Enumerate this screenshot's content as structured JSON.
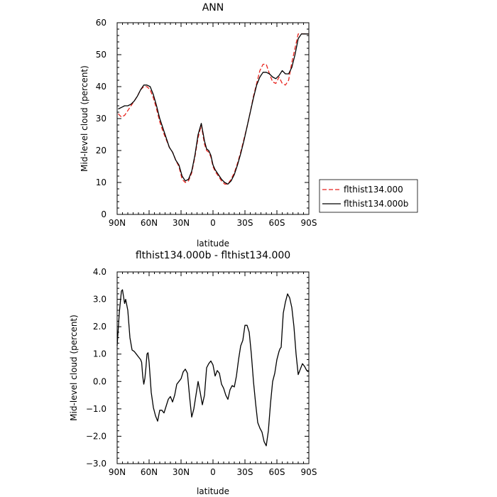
{
  "chart_data": [
    {
      "type": "line",
      "title": "ANN",
      "xlabel": "latitude",
      "ylabel": "Mid-level cloud (percent)",
      "xlim": [
        90,
        -90
      ],
      "ylim": [
        0,
        60
      ],
      "x_ticks": [
        90,
        60,
        30,
        0,
        -30,
        -60,
        -90
      ],
      "x_tick_labels": [
        "90N",
        "60N",
        "30N",
        "0",
        "30S",
        "60S",
        "90S"
      ],
      "y_ticks": [
        0,
        10,
        20,
        30,
        40,
        50,
        60
      ],
      "y_tick_labels": [
        "0",
        "10",
        "20",
        "30",
        "40",
        "50",
        "60"
      ],
      "grid": false,
      "legend_position": "right",
      "series": [
        {
          "name": "flthist134.000",
          "color": "#e8231d",
          "dash": "dashed",
          "x": [
            89,
            86,
            83,
            80,
            77,
            74,
            71,
            68,
            65,
            62,
            59,
            56,
            53,
            50,
            47,
            44,
            41,
            38,
            35,
            32,
            29,
            26,
            23,
            20,
            17,
            14,
            11,
            8,
            6,
            4,
            2,
            0,
            -2,
            -4,
            -6,
            -8,
            -11,
            -14,
            -17,
            -20,
            -23,
            -26,
            -29,
            -32,
            -35,
            -38,
            -41,
            -44,
            -47,
            -50,
            -53,
            -56,
            -59,
            -62,
            -65,
            -68,
            -71,
            -74,
            -77,
            -80,
            -83,
            -86,
            -88,
            -89.5
          ],
          "y": [
            31.5,
            30.5,
            31,
            32.5,
            34,
            35.5,
            37,
            39,
            40,
            40,
            39,
            36.5,
            33,
            29,
            26,
            23.5,
            21,
            19.5,
            17,
            15,
            11,
            10,
            10.5,
            13,
            18,
            24,
            28,
            22,
            20,
            19.5,
            18,
            15,
            13.5,
            12.5,
            11.5,
            10.5,
            9.5,
            9.5,
            11,
            13,
            16,
            19.5,
            23.5,
            27.5,
            32,
            37,
            41,
            45,
            47,
            47,
            44,
            41.5,
            41,
            43,
            41,
            40.5,
            42,
            47.5,
            52,
            56.5,
            56.5,
            56.5,
            56.5,
            56.5
          ]
        },
        {
          "name": "flthist134.000b",
          "color": "#000000",
          "dash": "solid",
          "x": [
            89,
            86,
            83,
            80,
            77,
            74,
            71,
            68,
            65,
            62,
            59,
            56,
            53,
            50,
            47,
            44,
            41,
            38,
            35,
            32,
            29,
            26,
            23,
            20,
            17,
            14,
            11,
            8,
            6,
            4,
            2,
            0,
            -2,
            -4,
            -6,
            -8,
            -11,
            -14,
            -17,
            -20,
            -23,
            -26,
            -29,
            -32,
            -35,
            -38,
            -41,
            -44,
            -47,
            -50,
            -53,
            -56,
            -59,
            -62,
            -65,
            -68,
            -71,
            -74,
            -77,
            -80,
            -83,
            -86,
            -88,
            -89.5
          ],
          "y": [
            33,
            33.5,
            34,
            34,
            34.5,
            35.5,
            37,
            39,
            40.5,
            40.5,
            40,
            37.5,
            34,
            30,
            27,
            24,
            21,
            19.5,
            17,
            15.5,
            12,
            10.5,
            11,
            13.5,
            18.5,
            25,
            28.5,
            23,
            20.5,
            20,
            18.5,
            15.5,
            14,
            13,
            12,
            11,
            10,
            9.5,
            10.5,
            12.5,
            15.5,
            19,
            23,
            27.5,
            32,
            36.5,
            40.5,
            43,
            44.5,
            44.5,
            44,
            43,
            42.5,
            43.5,
            45,
            44,
            44,
            46,
            50,
            55,
            56.5,
            56.5,
            56.5,
            56.5
          ]
        }
      ]
    },
    {
      "type": "line",
      "title": "flthist134.000b - flthist134.000",
      "xlabel": "latitude",
      "ylabel": "Mid-level cloud (percent)",
      "xlim": [
        90,
        -90
      ],
      "ylim": [
        -3,
        4
      ],
      "x_ticks": [
        90,
        60,
        30,
        0,
        -30,
        -60,
        -90
      ],
      "x_tick_labels": [
        "90N",
        "60N",
        "30N",
        "0",
        "30S",
        "60S",
        "90S"
      ],
      "y_ticks": [
        -3,
        -2,
        -1,
        0,
        1,
        2,
        3,
        4
      ],
      "y_tick_labels": [
        "−3.0",
        "−2.0",
        "−1.0",
        "0.0",
        "1.0",
        "2.0",
        "3.0",
        "4.0"
      ],
      "grid": false,
      "series": [
        {
          "color": "#000000",
          "dash": "solid",
          "x": [
            90,
            88,
            86,
            85,
            84,
            83,
            82,
            80,
            78,
            76,
            74,
            72,
            70,
            68,
            67,
            66,
            65,
            64,
            63,
            62,
            61,
            60,
            58,
            56,
            54,
            52,
            50,
            48,
            46,
            44,
            42,
            40,
            38,
            36,
            34,
            32,
            30,
            28,
            26,
            24,
            22,
            20,
            18,
            16,
            14,
            12,
            10,
            8,
            6,
            4,
            2,
            0,
            -2,
            -4,
            -6,
            -8,
            -10,
            -12,
            -14,
            -16,
            -18,
            -20,
            -22,
            -24,
            -26,
            -28,
            -30,
            -32,
            -34,
            -36,
            -38,
            -40,
            -42,
            -44,
            -46,
            -48,
            -50,
            -52,
            -54,
            -56,
            -58,
            -60,
            -62,
            -63,
            -64,
            -65,
            -66,
            -68,
            -70,
            -72,
            -74,
            -76,
            -78,
            -80,
            -82,
            -84,
            -86,
            -88,
            -89.5
          ],
          "y": [
            1.3,
            2.5,
            3.3,
            3.35,
            3.1,
            2.85,
            3.0,
            2.6,
            1.6,
            1.15,
            1.1,
            1.0,
            0.9,
            0.8,
            0.7,
            0.2,
            -0.1,
            0.1,
            0.5,
            1.0,
            1.05,
            0.7,
            -0.4,
            -0.95,
            -1.25,
            -1.45,
            -1.05,
            -1.05,
            -1.15,
            -0.9,
            -0.65,
            -0.55,
            -0.75,
            -0.5,
            -0.1,
            0.0,
            0.1,
            0.35,
            0.45,
            0.3,
            -0.55,
            -1.3,
            -1.0,
            -0.5,
            0.0,
            -0.4,
            -0.85,
            -0.5,
            0.5,
            0.65,
            0.75,
            0.6,
            0.2,
            0.4,
            0.3,
            -0.1,
            -0.25,
            -0.5,
            -0.65,
            -0.3,
            -0.15,
            -0.2,
            0.2,
            0.8,
            1.3,
            1.5,
            2.05,
            2.05,
            1.8,
            1.0,
            0.0,
            -0.8,
            -1.5,
            -1.7,
            -1.85,
            -2.2,
            -2.35,
            -1.8,
            -0.8,
            0.0,
            0.3,
            0.8,
            1.1,
            1.2,
            1.25,
            1.9,
            2.5,
            2.9,
            3.2,
            3.05,
            2.7,
            2.0,
            1.0,
            0.25,
            0.45,
            0.65,
            0.55,
            0.4,
            0.35
          ]
        }
      ]
    }
  ],
  "legend": {
    "items": [
      {
        "label": "flthist134.000",
        "color": "#e8231d",
        "dash": "dashed"
      },
      {
        "label": "flthist134.000b",
        "color": "#000000",
        "dash": "solid"
      }
    ]
  }
}
